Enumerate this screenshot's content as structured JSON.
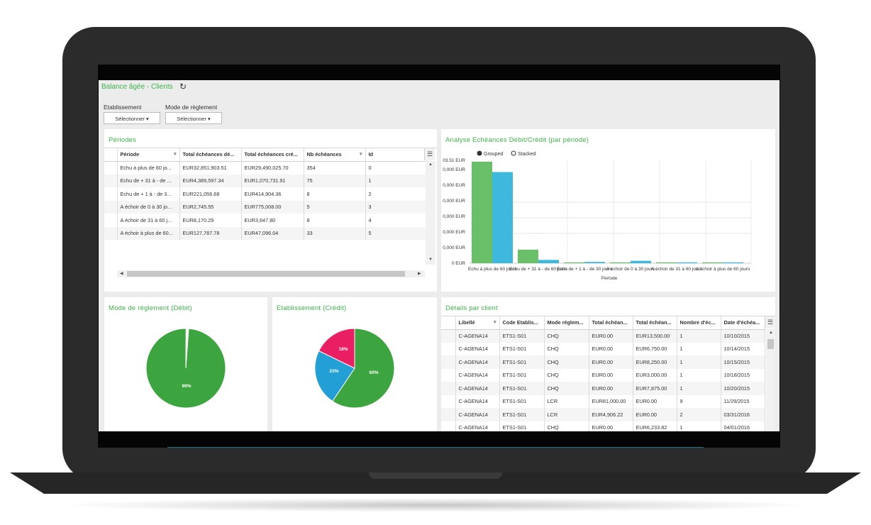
{
  "app": {
    "title": "Balance âgée - Clients"
  },
  "filters": {
    "etablissement": {
      "label": "Etablissement",
      "button": "Sélectionner ▾"
    },
    "mode": {
      "label": "Mode de règlement",
      "button": "Sélectionner ▾"
    }
  },
  "periodes": {
    "title": "Périodes",
    "columns": [
      "Période",
      "Total échéances dé...",
      "Total échéances cré...",
      "Nb échéances",
      "Id"
    ],
    "rows": [
      [
        "Echu à plus de 60 jo...",
        "EUR32,851,903.51",
        "EUR29,490,025.70",
        "354",
        "0"
      ],
      [
        "Echu de + 31 à - de ...",
        "EUR4,389,597.34",
        "EUR1,070,731.91",
        "75",
        "1"
      ],
      [
        "Echu de + 1 à - de 3...",
        "EUR221,056.68",
        "EUR414,904.36",
        "8",
        "2"
      ],
      [
        "A échoir de 0 à 30 jo...",
        "EUR2,745.55",
        "EUR775,008.00",
        "5",
        "3"
      ],
      [
        "A échoir de 31 à 60 j...",
        "EUR8,170.29",
        "EUR3,647.80",
        "8",
        "4"
      ],
      [
        "A échoir à plus de 60...",
        "EUR127,787.78",
        "EUR47,096.04",
        "33",
        "5"
      ]
    ]
  },
  "analyse": {
    "title": "Analyse Echéances Débit/Crédit (par période)",
    "legend": {
      "grouped": "Grouped",
      "stacked": "Stacked"
    },
    "y_tick_labels": [
      "03.51 EUR",
      "0,000 EUR",
      "0,000 EUR",
      "0,000 EUR",
      "0,000 EUR",
      "0,000 EUR",
      "0,000 EUR",
      "0 EUR"
    ],
    "x_tick_labels": [
      "Echu à plus de 60 jours",
      "Echu de + 31 à - de 60 jours",
      "Echu de + 1 à - de 30 jours",
      "A échoir de 0 à 30 jours",
      "A échoir de 31 à 60 jours",
      "A échoir à plus de 60 jours"
    ],
    "xlabel": "Periode"
  },
  "chart_data": [
    {
      "type": "bar",
      "title": "Analyse Echéances Débit/Crédit (par période)",
      "xlabel": "Periode",
      "categories": [
        "Echu à plus de 60 jours",
        "Echu de + 31 à - de 60 jours",
        "Echu de + 1 à - de 30 jours",
        "A échoir de 0 à 30 jours",
        "A échoir de 31 à 60 jours",
        "A échoir à plus de 60 jours"
      ],
      "series": [
        {
          "values": [
            32851903.51,
            4389597.34,
            221056.68,
            2745.55,
            8170.29,
            127787.78
          ],
          "color": "#6abf69"
        },
        {
          "values": [
            29490025.7,
            1070731.91,
            414904.36,
            775008.0,
            3647.8,
            47096.04
          ],
          "color": "#3fb8de"
        }
      ],
      "ylim": [
        0,
        33510000
      ],
      "grid": true,
      "legend": "top-left"
    },
    {
      "type": "pie",
      "title": "Mode de règlement (Débit)",
      "slices": [
        {
          "label": "99%",
          "value": 99,
          "color": "#3da53f"
        },
        {
          "label": "",
          "value": 1,
          "color": "#ffffff"
        }
      ]
    },
    {
      "type": "pie",
      "title": "Etablissement (Crédit)",
      "slices": [
        {
          "label": "60%",
          "value": 60,
          "color": "#3da53f"
        },
        {
          "label": "23%",
          "value": 23,
          "color": "#22a0d6"
        },
        {
          "label": "18%",
          "value": 18,
          "color": "#ea1f63"
        }
      ]
    }
  ],
  "mode_debit": {
    "title": "Mode de règlement (Débit)",
    "label": "99%"
  },
  "etab_credit": {
    "title": "Etablissement (Crédit)",
    "labels": [
      "60%",
      "23%",
      "18%"
    ]
  },
  "details": {
    "title": "Détails par client",
    "columns": [
      "Libellé",
      "Code Etablis...",
      "Mode réglem...",
      "Total échéan...",
      "Total échéan...",
      "Nombre d'éc...",
      "Date d'échéa..."
    ],
    "rows": [
      [
        "C-AGENA14",
        "ETS1-S01",
        "CHQ",
        "EUR0.00",
        "EUR13,500.00",
        "1",
        "10/10/2015"
      ],
      [
        "C-AGENA14",
        "ETS1-S01",
        "CHQ",
        "EUR0.00",
        "EUR6,750.00",
        "1",
        "10/14/2015"
      ],
      [
        "C-AGENA14",
        "ETS1-S01",
        "CHQ",
        "EUR0.00",
        "EUR8,250.00",
        "1",
        "10/15/2015"
      ],
      [
        "C-AGENA14",
        "ETS1-S01",
        "CHQ",
        "EUR0.00",
        "EUR3,000.00",
        "1",
        "10/18/2015"
      ],
      [
        "C-AGENA14",
        "ETS1-S01",
        "CHQ",
        "EUR0.00",
        "EUR7,875.00",
        "1",
        "10/20/2015"
      ],
      [
        "C-AGENA14",
        "ETS1-S01",
        "LCR",
        "EUR81,000.00",
        "EUR0.00",
        "9",
        "11/29/2015"
      ],
      [
        "C-AGENA14",
        "ETS1-S01",
        "LCR",
        "EUR4,906.22",
        "EUR0.00",
        "2",
        "03/31/2016"
      ],
      [
        "C-AGENA14",
        "ETS1-S01",
        "CHQ",
        "EUR0.00",
        "EUR6,233.82",
        "1",
        "04/01/2016"
      ]
    ]
  },
  "icons": {
    "refresh": "refresh-icon",
    "grid_menu": "menu-icon",
    "sort": "chevron-down-icon",
    "scroll_up": "scroll-up-icon",
    "scroll_down": "scroll-down-icon",
    "scroll_left": "scroll-left-icon",
    "scroll_right": "scroll-right-icon"
  },
  "colors": {
    "accent_title": "#3cb54a",
    "bar_green": "#6abf69",
    "bar_blue": "#3fb8de",
    "pie_green": "#3da53f",
    "pie_blue": "#22a0d6",
    "pie_pink": "#ea1f63"
  }
}
